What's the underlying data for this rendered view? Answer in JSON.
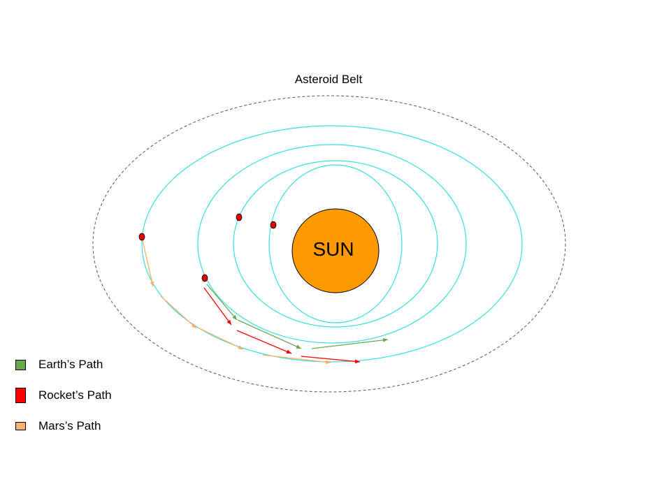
{
  "title": "Asteroid Belt",
  "sun": {
    "label": "SUN",
    "color": "#FF9900"
  },
  "colors": {
    "orbit": "#33E0E0",
    "belt": "#555555",
    "planet": "#E00000",
    "earth_path": "#6AA84F",
    "rocket_path": "#FF0000",
    "mars_path": "#F6B26B"
  },
  "legend": [
    {
      "label": "Earth’s Path",
      "color": "#6AA84F",
      "icon": "earth-path-swatch"
    },
    {
      "label": "Rocket’s Path",
      "color": "#FF0000",
      "icon": "rocket-path-swatch"
    },
    {
      "label": "Mars’s Path",
      "color": "#F6B26B",
      "icon": "mars-path-swatch"
    }
  ]
}
